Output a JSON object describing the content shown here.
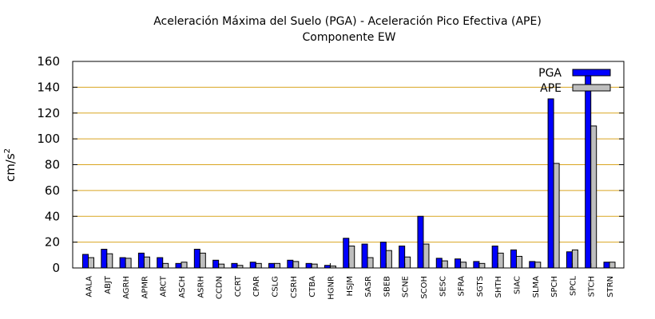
{
  "chart_data": {
    "type": "bar",
    "title": "Aceleración Máxima del Suelo (PGA) -  Aceleración Pico Efectiva (APE)",
    "subtitle": "Componente EW",
    "ylabel": "cm/s",
    "ylabel_superscript": "2",
    "xlabel": "",
    "ylim": [
      0,
      160
    ],
    "yticks": [
      0,
      20,
      40,
      60,
      80,
      100,
      120,
      140,
      160
    ],
    "grid": "horizontal",
    "legend_position": "top-right",
    "categories": [
      "AALA",
      "ABJT",
      "AGRH",
      "APMR",
      "ARCT",
      "ASCH",
      "ASRH",
      "CCDN",
      "CCRT",
      "CPAR",
      "CSLG",
      "CSRH",
      "CTBA",
      "HGNR",
      "HSJM",
      "SASR",
      "SBEB",
      "SCNE",
      "SCOH",
      "SESC",
      "SFRA",
      "SGTS",
      "SHTH",
      "SIAC",
      "SLMA",
      "SPCH",
      "SPCL",
      "STCH",
      "STRN"
    ],
    "series": [
      {
        "name": "PGA",
        "color": "#0000ff",
        "values": [
          10.5,
          14.5,
          8,
          11.5,
          8,
          3.5,
          14.5,
          6,
          3.5,
          4.5,
          3.5,
          6,
          3.5,
          2,
          23,
          18.5,
          20,
          17,
          40,
          7.5,
          7,
          5,
          17,
          14,
          5,
          131,
          12.5,
          150,
          4.5
        ]
      },
      {
        "name": "APE",
        "color": "#bebebe",
        "values": [
          8,
          11,
          7.5,
          8.5,
          3.5,
          4.5,
          11.5,
          3,
          2,
          3.5,
          3.5,
          5,
          3,
          1.5,
          17,
          8,
          13.5,
          8.5,
          18.5,
          5.5,
          4.5,
          3.5,
          11.5,
          9,
          4.5,
          81,
          14,
          110,
          4.5
        ]
      }
    ]
  }
}
